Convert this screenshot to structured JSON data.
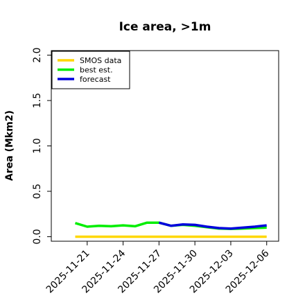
{
  "chart_data": {
    "type": "line",
    "title": "Ice area, >1m",
    "ylabel": "Area (Mkm2)",
    "xlabel": "",
    "ylim": [
      -0.05,
      2.05
    ],
    "y_ticks": [
      0.0,
      0.5,
      1.0,
      1.5,
      2.0
    ],
    "y_tick_labels": [
      "0.0",
      "0.5",
      "1.0",
      "1.5",
      "2.0"
    ],
    "xlim": [
      "2025-11-18",
      "2025-12-07"
    ],
    "x_ticks": [
      "2025-11-21",
      "2025-11-24",
      "2025-11-27",
      "2025-11-30",
      "2025-12-03",
      "2025-12-06"
    ],
    "x_tick_colors": [
      "#000000",
      "#000000",
      "#228b22",
      "#000000",
      "#000000",
      "#000000"
    ],
    "legend_position": "top-left",
    "grid": false,
    "series": [
      {
        "name": "SMOS data",
        "color": "#ffd700",
        "x": [
          "2025-11-20",
          "2025-12-06"
        ],
        "y": [
          0.0,
          0.0
        ]
      },
      {
        "name": "best est.",
        "color": "#00ee00",
        "x": [
          "2025-11-20",
          "2025-11-21",
          "2025-11-22",
          "2025-11-23",
          "2025-11-24",
          "2025-11-25",
          "2025-11-26",
          "2025-11-27",
          "2025-11-28",
          "2025-11-29",
          "2025-11-30",
          "2025-12-01",
          "2025-12-02",
          "2025-12-03",
          "2025-12-04",
          "2025-12-05",
          "2025-12-06"
        ],
        "y": [
          0.15,
          0.11,
          0.12,
          0.115,
          0.125,
          0.115,
          0.155,
          0.155,
          0.12,
          0.13,
          0.12,
          0.105,
          0.09,
          0.085,
          0.09,
          0.095,
          0.1
        ]
      },
      {
        "name": "forecast",
        "color": "#0000dd",
        "x": [
          "2025-11-27",
          "2025-11-28",
          "2025-11-29",
          "2025-11-30",
          "2025-12-01",
          "2025-12-02",
          "2025-12-03",
          "2025-12-04",
          "2025-12-05",
          "2025-12-06"
        ],
        "y": [
          0.155,
          0.12,
          0.135,
          0.13,
          0.11,
          0.095,
          0.09,
          0.1,
          0.11,
          0.125
        ]
      }
    ]
  }
}
